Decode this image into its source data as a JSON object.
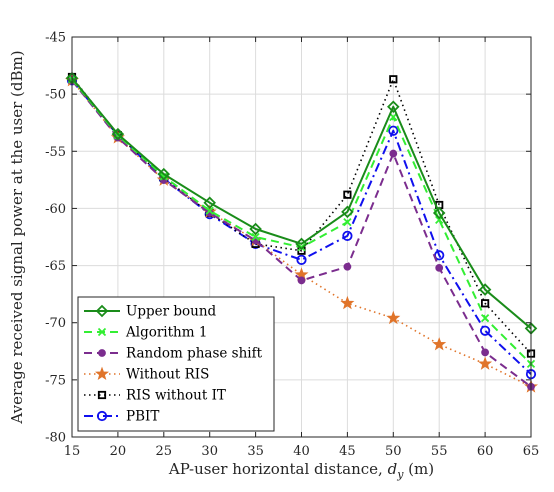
{
  "chart_data": {
    "type": "line",
    "title": "",
    "xlabel": "AP-user horizontal distance, d_y (m)",
    "xlabel_parts": {
      "before": "AP-user horizontal distance, ",
      "var": "d",
      "sub": "y",
      "after": " (m)"
    },
    "ylabel": "Average received signal power at the user (dBm)",
    "x": [
      15,
      20,
      25,
      30,
      35,
      40,
      45,
      50,
      55,
      60,
      65
    ],
    "xlim": [
      15,
      65
    ],
    "ylim": [
      -80,
      -45
    ],
    "xticks": [
      15,
      20,
      25,
      30,
      35,
      40,
      45,
      50,
      55,
      60,
      65
    ],
    "yticks": [
      -80,
      -75,
      -70,
      -65,
      -60,
      -55,
      -50,
      -45
    ],
    "grid": true,
    "legend": "bottom-left",
    "series": [
      {
        "name": "Upper bound",
        "color": "#1a8c1a",
        "dash": "solid",
        "marker": "diamond",
        "width": 2,
        "values": [
          -48.6,
          -53.5,
          -57.0,
          -59.5,
          -61.8,
          -63.1,
          -60.3,
          -51.1,
          -60.4,
          -67.1,
          -70.5
        ]
      },
      {
        "name": "Algorithm 1",
        "color": "#33ee33",
        "dash": "dashed",
        "marker": "x",
        "width": 2,
        "values": [
          -48.7,
          -53.6,
          -57.2,
          -60.2,
          -62.5,
          -63.4,
          -61.2,
          -52.0,
          -61.0,
          -69.6,
          -73.6
        ]
      },
      {
        "name": "Random phase shift",
        "color": "#7b2d8e",
        "dash": "dashed",
        "marker": "dot",
        "width": 2,
        "values": [
          -48.8,
          -53.8,
          -57.5,
          -60.4,
          -62.8,
          -66.3,
          -65.1,
          -55.2,
          -65.2,
          -72.6,
          -75.6
        ]
      },
      {
        "name": "Without RIS",
        "color": "#e0742a",
        "dash": "dotted",
        "marker": "star",
        "width": 1.6,
        "values": [
          -48.8,
          -53.8,
          -57.5,
          -60.3,
          -62.8,
          -65.8,
          -68.3,
          -69.6,
          -71.9,
          -73.6,
          -75.6
        ]
      },
      {
        "name": "RIS without IT",
        "color": "#000000",
        "dash": "dotted",
        "marker": "square",
        "width": 1.6,
        "values": [
          -48.5,
          -53.6,
          -57.3,
          -60.4,
          -63.1,
          -63.7,
          -58.8,
          -48.7,
          -59.7,
          -68.3,
          -72.7
        ]
      },
      {
        "name": "PBIT",
        "color": "#1010ee",
        "dash": "dashdot",
        "marker": "circle",
        "width": 2,
        "values": [
          -48.8,
          -53.6,
          -57.4,
          -60.5,
          -63.1,
          -64.5,
          -62.4,
          -53.2,
          -64.1,
          -70.7,
          -74.5
        ]
      }
    ]
  }
}
